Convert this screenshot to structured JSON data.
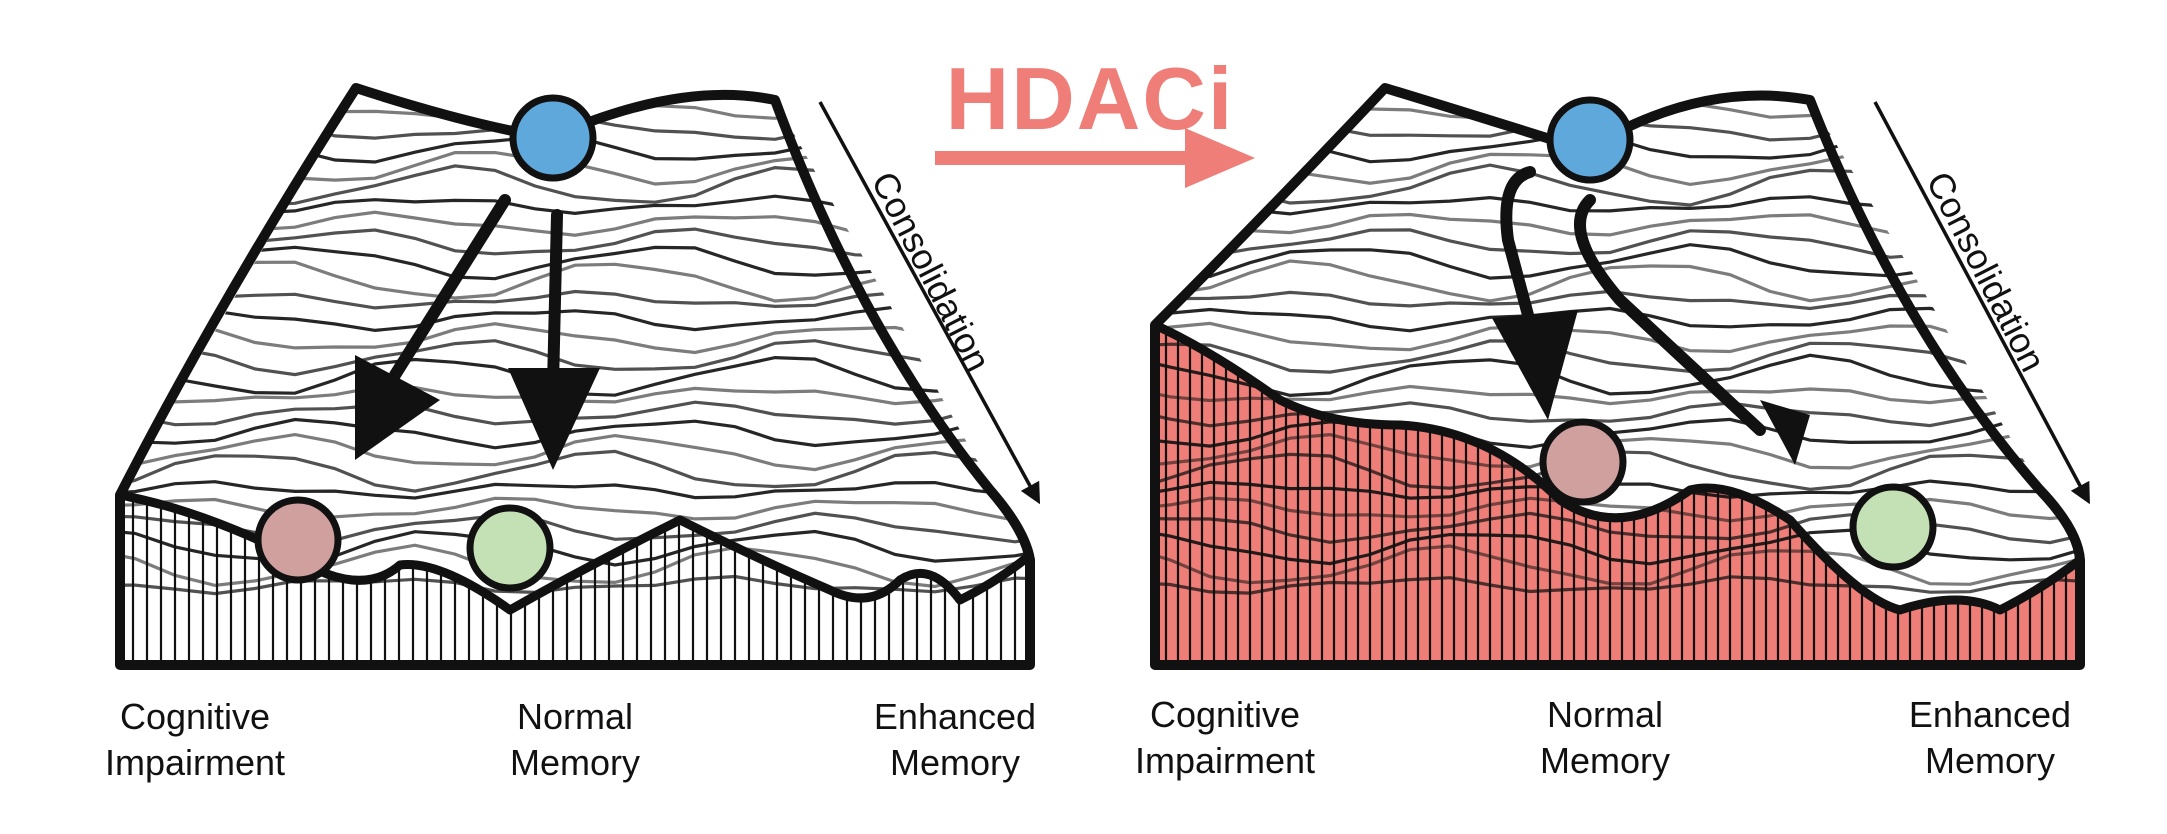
{
  "title": "HDACi",
  "consolidation_label": "Consolidation",
  "colors": {
    "accent": "#f07e78",
    "ball_start": "#5fa8dc",
    "ball_impaired": "#cfa09e",
    "ball_enhanced": "#c4e0b5",
    "outline": "#111111"
  },
  "panels": [
    {
      "name": "baseline",
      "labels": [
        {
          "line1": "Cognitive",
          "line2": "Impairment"
        },
        {
          "line1": "Normal",
          "line2": "Memory"
        },
        {
          "line1": "Enhanced",
          "line2": "Memory"
        }
      ]
    },
    {
      "name": "hdaci",
      "labels": [
        {
          "line1": "Cognitive",
          "line2": "Impairment"
        },
        {
          "line1": "Normal",
          "line2": "Memory"
        },
        {
          "line1": "Enhanced",
          "line2": "Memory"
        }
      ]
    }
  ]
}
